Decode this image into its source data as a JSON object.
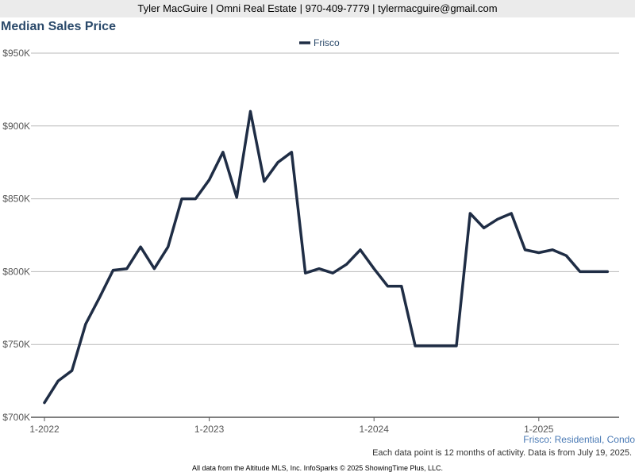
{
  "header": {
    "contact": "Tyler MacGuire | Omni Real Estate | 970-409-7779 | tylermacguire@gmail.com"
  },
  "colors": {
    "line": "#1f2d45",
    "title": "#2b4a6b",
    "subtitle": "#4a7ab5",
    "grid": "#b9b9b9"
  },
  "footer": {
    "subtitle": "Frisco: Residential, Condo",
    "note": "Each data point is 12 months of activity. Data is from July 19, 2025.",
    "credit": "All data from the Altitude MLS, Inc. InfoSparks © 2025 ShowingTime Plus, LLC."
  },
  "chart_data": {
    "type": "line",
    "title": "Median Sales Price",
    "xlabel": "",
    "ylabel": "",
    "x": [
      "2022-01",
      "2022-02",
      "2022-03",
      "2022-04",
      "2022-05",
      "2022-06",
      "2022-07",
      "2022-08",
      "2022-09",
      "2022-10",
      "2022-11",
      "2022-12",
      "2023-01",
      "2023-02",
      "2023-03",
      "2023-04",
      "2023-05",
      "2023-06",
      "2023-07",
      "2023-08",
      "2023-09",
      "2023-10",
      "2023-11",
      "2023-12",
      "2024-01",
      "2024-02",
      "2024-03",
      "2024-04",
      "2024-05",
      "2024-06",
      "2024-07",
      "2024-08",
      "2024-09",
      "2024-10",
      "2024-11",
      "2024-12",
      "2025-01",
      "2025-02",
      "2025-03",
      "2025-04",
      "2025-05",
      "2025-06"
    ],
    "x_ticks": [
      "2022-01",
      "2023-01",
      "2024-01",
      "2025-01"
    ],
    "x_tick_labels": [
      "1-2022",
      "1-2023",
      "1-2024",
      "1-2025"
    ],
    "series": [
      {
        "name": "Frisco",
        "values": [
          710000,
          725000,
          732000,
          764000,
          782000,
          801000,
          802000,
          817000,
          802000,
          817000,
          850000,
          850000,
          863000,
          882000,
          851000,
          910000,
          862000,
          875000,
          882000,
          799000,
          802000,
          799000,
          805000,
          815000,
          802000,
          790000,
          790000,
          749000,
          749000,
          749000,
          749000,
          840000,
          830000,
          836000,
          840000,
          815000,
          813000,
          815000,
          811000,
          800000,
          800000,
          800000
        ]
      }
    ],
    "ylim": [
      700000,
      950000
    ],
    "y_ticks": [
      700000,
      750000,
      800000,
      850000,
      900000,
      950000
    ],
    "y_tick_labels": [
      "$700K",
      "$750K",
      "$800K",
      "$850K",
      "$900K",
      "$950K"
    ],
    "grid": true,
    "legend": "top-center"
  }
}
